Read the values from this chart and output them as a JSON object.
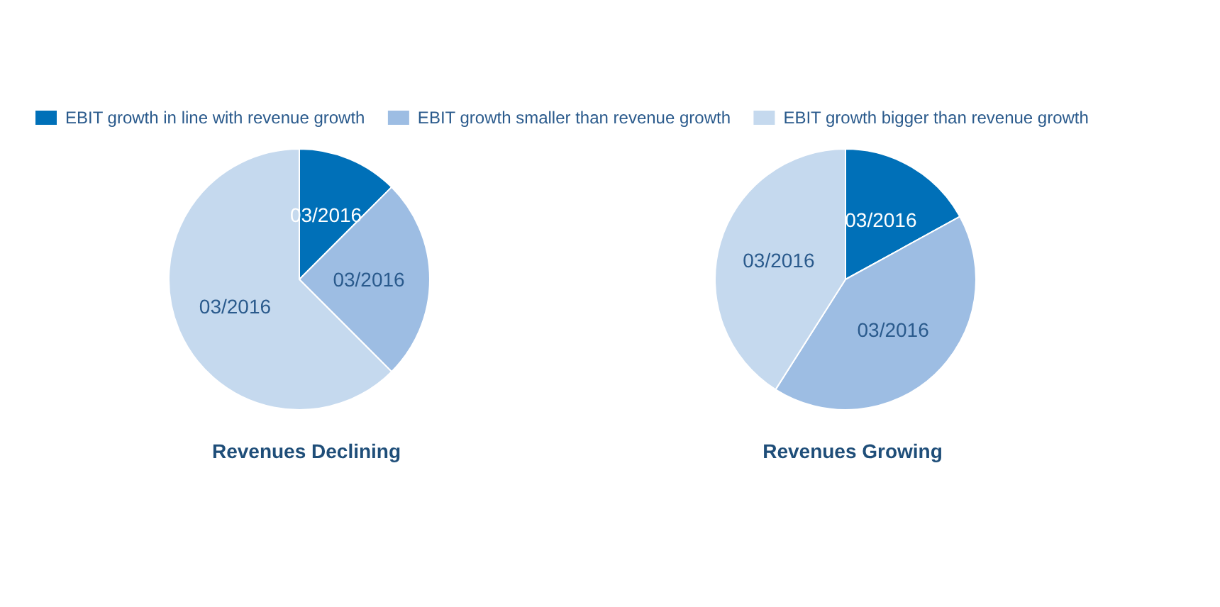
{
  "chart_data": {
    "type": "pie",
    "categories": [
      "EBIT growth in line with revenue growth",
      "EBIT growth smaller than revenue growth",
      "EBIT growth bigger than revenue growth"
    ],
    "colors": [
      "#0070b8",
      "#9dbde3",
      "#c5d9ee"
    ],
    "legend": "top",
    "series": [
      {
        "name": "Revenues Declining",
        "values": [
          12.5,
          25,
          62.5
        ],
        "value_labels": [
          "03/2016",
          "03/2016",
          "03/2016"
        ]
      },
      {
        "name": "Revenues Growing",
        "values": [
          17,
          42,
          41
        ],
        "value_labels": [
          "03/2016",
          "03/2016",
          "03/2016"
        ]
      }
    ]
  }
}
